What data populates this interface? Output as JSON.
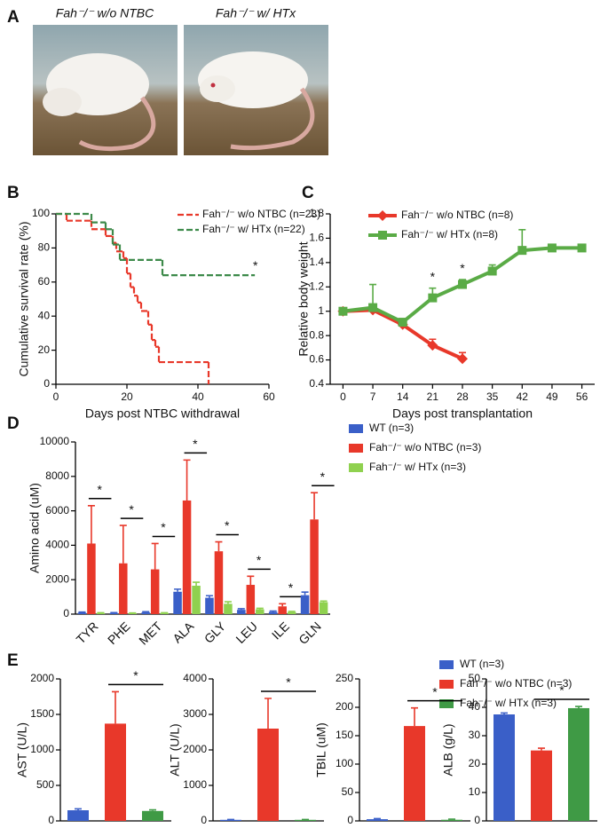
{
  "panel_a": {
    "letter": "A",
    "photos": [
      {
        "label": "Fah⁻/⁻ w/o NTBC"
      },
      {
        "label": "Fah⁻/⁻ w/ HTx"
      }
    ]
  },
  "chart_data": [
    {
      "type": "step",
      "panel": "B",
      "xlabel": "Days post NTBC withdrawal",
      "ylabel": "Cumulative survival rate (%)",
      "xlim": [
        0,
        60
      ],
      "xticks": [
        0,
        20,
        40,
        60
      ],
      "ylim": [
        0,
        100
      ],
      "yticks": [
        0,
        20,
        40,
        60,
        80,
        100
      ],
      "annotation": "*",
      "series": [
        {
          "name": "Fah⁻/⁻ w/o NTBC (n=23)",
          "color": "#e8382a",
          "x": [
            0,
            3,
            10,
            14,
            16,
            17,
            19,
            20,
            21,
            22,
            23,
            24,
            26,
            27,
            28,
            29,
            43
          ],
          "values": [
            100,
            96,
            91,
            87,
            83,
            78,
            74,
            65,
            57,
            52,
            48,
            43,
            35,
            26,
            22,
            13,
            0
          ]
        },
        {
          "name": "Fah⁻/⁻ w/ HTx (n=22)",
          "color": "#3d8a4a",
          "x": [
            0,
            10,
            14,
            16,
            18,
            30,
            56
          ],
          "values": [
            100,
            95,
            91,
            82,
            73,
            64,
            64
          ]
        }
      ]
    },
    {
      "type": "line",
      "panel": "C",
      "xlabel": "Days post transplantation",
      "ylabel": "Relative body weight",
      "xlim": [
        -3,
        59
      ],
      "xticks": [
        0,
        7,
        14,
        21,
        28,
        35,
        42,
        49,
        56
      ],
      "ylim": [
        0.4,
        1.8
      ],
      "yticks": [
        0.4,
        0.6,
        0.8,
        1,
        1.2,
        1.4,
        1.6,
        1.8
      ],
      "series": [
        {
          "name": "Fah⁻/⁻ w/o NTBC (n=8)",
          "color": "#e8382a",
          "marker": "diamond",
          "x": [
            0,
            7,
            14,
            21,
            28
          ],
          "values": [
            1.0,
            1.01,
            0.89,
            0.72,
            0.61
          ],
          "errors": [
            0.02,
            0.02,
            0.03,
            0.05,
            0.05
          ]
        },
        {
          "name": "Fah⁻/⁻ w/ HTx (n=8)",
          "color": "#5aab46",
          "marker": "square",
          "x": [
            0,
            7,
            14,
            21,
            28,
            35,
            42,
            49,
            56
          ],
          "values": [
            1.0,
            1.03,
            0.91,
            1.11,
            1.22,
            1.33,
            1.5,
            1.52,
            1.52
          ],
          "errors": [
            0.02,
            0.19,
            0.02,
            0.08,
            0.04,
            0.05,
            0.17,
            0.02,
            0.02
          ],
          "significance": [
            null,
            null,
            null,
            "*",
            "*",
            null,
            null,
            null,
            null
          ]
        }
      ]
    },
    {
      "type": "bar",
      "panel": "D",
      "ylabel": "Amino acid (uM)",
      "categories": [
        "TYR",
        "PHE",
        "MET",
        "ALA",
        "GLY",
        "LEU",
        "ILE",
        "GLN"
      ],
      "ylim": [
        0,
        10000
      ],
      "yticks": [
        0,
        2000,
        4000,
        6000,
        8000,
        10000
      ],
      "significance": [
        "*",
        "*",
        "*",
        "*",
        "*",
        "*",
        "*",
        "*"
      ],
      "series": [
        {
          "name": "WT (n=3)",
          "color": "#3a5fc8",
          "values": [
            80,
            60,
            100,
            1300,
            950,
            250,
            130,
            1100
          ],
          "errors": [
            40,
            30,
            40,
            150,
            120,
            60,
            50,
            180
          ]
        },
        {
          "name": "Fah⁻/⁻ w/o NTBC (n=3)",
          "color": "#e8382a",
          "values": [
            4100,
            2950,
            2600,
            6600,
            3650,
            1700,
            450,
            5500
          ],
          "errors": [
            2200,
            2200,
            1500,
            2350,
            550,
            500,
            150,
            1550
          ]
        },
        {
          "name": "Fah⁻/⁻ w/ HTx (n=3)",
          "color": "#8fd14f",
          "values": [
            60,
            50,
            60,
            1650,
            600,
            280,
            120,
            700
          ],
          "errors": [
            20,
            20,
            20,
            200,
            120,
            60,
            40,
            60
          ]
        }
      ]
    },
    {
      "type": "bar-panels",
      "panel": "E",
      "series": [
        {
          "name": "WT (n=3)",
          "color": "#3a5fc8"
        },
        {
          "name": "Fah⁻/⁻ w/o NTBC (n=3)",
          "color": "#e8382a"
        },
        {
          "name": "Fah⁻/⁻ w/ HTx (n=3)",
          "color": "#3f9a45"
        }
      ],
      "subplots": [
        {
          "ylabel": "AST (U/L)",
          "ylim": [
            0,
            2000
          ],
          "yticks": [
            0,
            500,
            1000,
            1500,
            2000
          ],
          "values": [
            150,
            1370,
            140
          ],
          "errors": [
            20,
            450,
            15
          ],
          "annotation": "*"
        },
        {
          "ylabel": "ALT (U/L)",
          "ylim": [
            0,
            4000
          ],
          "yticks": [
            0,
            1000,
            2000,
            3000,
            4000
          ],
          "values": [
            30,
            2600,
            30
          ],
          "errors": [
            10,
            850,
            10
          ],
          "annotation": "*"
        },
        {
          "ylabel": "TBIL (uM)",
          "ylim": [
            0,
            250
          ],
          "yticks": [
            0,
            50,
            100,
            150,
            200,
            250
          ],
          "values": [
            3,
            167,
            2
          ],
          "errors": [
            1,
            32,
            1
          ],
          "annotation": "*"
        },
        {
          "ylabel": "ALB (g/L)",
          "ylim": [
            0,
            50
          ],
          "yticks": [
            0,
            10,
            20,
            30,
            40,
            50
          ],
          "values": [
            37.5,
            24.8,
            39.7
          ],
          "errors": [
            0.5,
            0.8,
            0.6
          ],
          "annotation": "*"
        }
      ]
    }
  ]
}
